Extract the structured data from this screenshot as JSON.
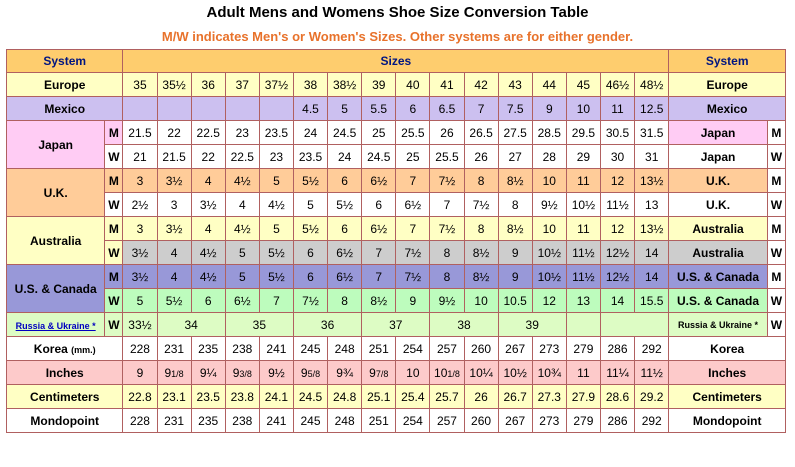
{
  "title": "Adult Mens and Womens Shoe Size Conversion Table",
  "subtitle": "M/W indicates Men's or Women's Sizes. Other systems are for either gender.",
  "header": {
    "system_left": "System",
    "sizes": "Sizes",
    "system_right": "System"
  },
  "europe": {
    "label": "Europe",
    "values": [
      "35",
      "35½",
      "36",
      "37",
      "37½",
      "38",
      "38½",
      "39",
      "40",
      "41",
      "42",
      "43",
      "44",
      "45",
      "46½",
      "48½"
    ]
  },
  "mexico": {
    "label": "Mexico",
    "values": [
      "",
      "",
      "",
      "",
      "",
      "4.5",
      "5",
      "5.5",
      "6",
      "6.5",
      "7",
      "7.5",
      "9",
      "10",
      "11",
      "12.5"
    ]
  },
  "japan": {
    "label": "Japan",
    "m": "M",
    "w": "W",
    "m_values": [
      "21.5",
      "22",
      "22.5",
      "23",
      "23.5",
      "24",
      "24.5",
      "25",
      "25.5",
      "26",
      "26.5",
      "27.5",
      "28.5",
      "29.5",
      "30.5",
      "31.5"
    ],
    "w_values": [
      "21",
      "21.5",
      "22",
      "22.5",
      "23",
      "23.5",
      "24",
      "24.5",
      "25",
      "25.5",
      "26",
      "27",
      "28",
      "29",
      "30",
      "31"
    ]
  },
  "uk": {
    "label": "U.K.",
    "m": "M",
    "w": "W",
    "m_values": [
      "3",
      "3½",
      "4",
      "4½",
      "5",
      "5½",
      "6",
      "6½",
      "7",
      "7½",
      "8",
      "8½",
      "10",
      "11",
      "12",
      "13½"
    ],
    "w_values": [
      "2½",
      "3",
      "3½",
      "4",
      "4½",
      "5",
      "5½",
      "6",
      "6½",
      "7",
      "7½",
      "8",
      "9½",
      "10½",
      "11½",
      "13"
    ]
  },
  "australia": {
    "label": "Australia",
    "m": "M",
    "w": "W",
    "m_values": [
      "3",
      "3½",
      "4",
      "4½",
      "5",
      "5½",
      "6",
      "6½",
      "7",
      "7½",
      "8",
      "8½",
      "10",
      "11",
      "12",
      "13½"
    ],
    "w_values": [
      "3½",
      "4",
      "4½",
      "5",
      "5½",
      "6",
      "6½",
      "7",
      "7½",
      "8",
      "8½",
      "9",
      "10½",
      "11½",
      "12½",
      "14"
    ]
  },
  "us": {
    "label": "U.S. & Canada",
    "m": "M",
    "w": "W",
    "m_values": [
      "3½",
      "4",
      "4½",
      "5",
      "5½",
      "6",
      "6½",
      "7",
      "7½",
      "8",
      "8½",
      "9",
      "10½",
      "11½",
      "12½",
      "14"
    ],
    "w_values": [
      "5",
      "5½",
      "6",
      "6½",
      "7",
      "7½",
      "8",
      "8½",
      "9",
      "9½",
      "10",
      "10.5",
      "12",
      "13",
      "14",
      "15.5"
    ]
  },
  "russia": {
    "label": "Russia & Ukraine *",
    "w": "W",
    "values": [
      "33½",
      "34",
      "35",
      "36",
      "37",
      "38",
      "39",
      "",
      ""
    ]
  },
  "korea": {
    "label": "Korea",
    "unit": "(mm.)",
    "values": [
      "228",
      "231",
      "235",
      "238",
      "241",
      "245",
      "248",
      "251",
      "254",
      "257",
      "260",
      "267",
      "273",
      "279",
      "286",
      "292"
    ]
  },
  "inches": {
    "label": "Inches",
    "values": [
      "9",
      "9",
      "9¼",
      "9",
      "9½",
      "9",
      "9¾",
      "9",
      "10",
      "10",
      "10¼",
      "10½",
      "10¾",
      "11",
      "11¼",
      "11½"
    ],
    "fracs": [
      "",
      "1/8",
      "",
      "3/8",
      "",
      "5/8",
      "",
      "7/8",
      "",
      "1/8",
      "",
      "",
      "",
      "",
      "",
      ""
    ]
  },
  "cm": {
    "label": "Centimeters",
    "values": [
      "22.8",
      "23.1",
      "23.5",
      "23.8",
      "24.1",
      "24.5",
      "24.8",
      "25.1",
      "25.4",
      "25.7",
      "26",
      "26.7",
      "27.3",
      "27.9",
      "28.6",
      "29.2"
    ]
  },
  "mondo": {
    "label": "Mondopoint",
    "values": [
      "228",
      "231",
      "235",
      "238",
      "241",
      "245",
      "248",
      "251",
      "254",
      "257",
      "260",
      "267",
      "273",
      "279",
      "286",
      "292"
    ]
  },
  "colors": {
    "header": "#fecd6e",
    "header_text": "#001580",
    "subtitle": "#e8722b",
    "border": "#b06060"
  }
}
